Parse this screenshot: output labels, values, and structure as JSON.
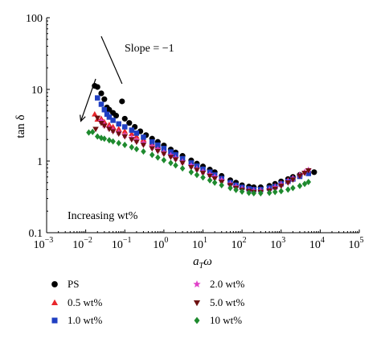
{
  "chart_data": {
    "type": "scatter",
    "title": "",
    "xlabel": "a_T ω",
    "xlabel_main": "a",
    "xlabel_sub": "T",
    "xlabel_tail": "ω",
    "ylabel": "tan δ",
    "x_scale": "log",
    "y_scale": "log",
    "xlim": [
      0.001,
      100000
    ],
    "ylim": [
      0.1,
      100
    ],
    "x_ticks": [
      {
        "value": 0.001,
        "base": "10",
        "exp": "−3"
      },
      {
        "value": 0.01,
        "base": "10",
        "exp": "−2"
      },
      {
        "value": 0.1,
        "base": "10",
        "exp": "−1"
      },
      {
        "value": 1,
        "base": "10",
        "exp": "0"
      },
      {
        "value": 10,
        "base": "10",
        "exp": "1"
      },
      {
        "value": 100,
        "base": "10",
        "exp": "2"
      },
      {
        "value": 1000,
        "base": "10",
        "exp": "3"
      },
      {
        "value": 10000,
        "base": "10",
        "exp": "4"
      },
      {
        "value": 100000,
        "base": "10",
        "exp": "5"
      }
    ],
    "y_ticks": [
      {
        "value": 0.1,
        "label": "0.1"
      },
      {
        "value": 1,
        "label": "1"
      },
      {
        "value": 10,
        "label": "10"
      },
      {
        "value": 100,
        "label": "100"
      }
    ],
    "grid": false,
    "legend_position": "bottom",
    "annotations": {
      "slope_text": "Slope = −1",
      "slope_line": {
        "x1": 0.025,
        "y1": 55,
        "x2": 0.085,
        "y2": 12
      },
      "arrow": {
        "x1": 0.018,
        "y1": 14,
        "x2": 0.0075,
        "y2": 3.6
      },
      "increasing_text": "Increasing wt%"
    },
    "series": [
      {
        "name": "PS",
        "color": "#000000",
        "marker": "circle",
        "points": [
          [
            0.017,
            11.2
          ],
          [
            0.02,
            10.8
          ],
          [
            0.025,
            8.8
          ],
          [
            0.03,
            7.3
          ],
          [
            0.035,
            5.6
          ],
          [
            0.04,
            5.2
          ],
          [
            0.05,
            4.7
          ],
          [
            0.06,
            4.3
          ],
          [
            0.085,
            6.8
          ],
          [
            0.1,
            3.9
          ],
          [
            0.13,
            3.4
          ],
          [
            0.18,
            3.0
          ],
          [
            0.25,
            2.6
          ],
          [
            0.35,
            2.3
          ],
          [
            0.5,
            2.05
          ],
          [
            0.7,
            1.85
          ],
          [
            1,
            1.65
          ],
          [
            1.5,
            1.45
          ],
          [
            2,
            1.32
          ],
          [
            3,
            1.18
          ],
          [
            5,
            1.02
          ],
          [
            7,
            0.92
          ],
          [
            10,
            0.84
          ],
          [
            15,
            0.76
          ],
          [
            20,
            0.7
          ],
          [
            30,
            0.62
          ],
          [
            50,
            0.54
          ],
          [
            70,
            0.5
          ],
          [
            100,
            0.46
          ],
          [
            150,
            0.44
          ],
          [
            200,
            0.43
          ],
          [
            300,
            0.43
          ],
          [
            500,
            0.45
          ],
          [
            700,
            0.48
          ],
          [
            1000,
            0.52
          ],
          [
            1500,
            0.56
          ],
          [
            2000,
            0.6
          ],
          [
            3000,
            0.64
          ],
          [
            5000,
            0.68
          ],
          [
            7000,
            0.7
          ]
        ]
      },
      {
        "name": "0.5 wt%",
        "color": "#e8262b",
        "marker": "triangle",
        "points": [
          [
            0.017,
            4.5
          ],
          [
            0.02,
            3.8
          ],
          [
            0.025,
            3.9
          ],
          [
            0.03,
            3.5
          ],
          [
            0.04,
            3.2
          ],
          [
            0.05,
            3.0
          ],
          [
            0.07,
            2.8
          ],
          [
            0.1,
            2.6
          ],
          [
            0.15,
            2.4
          ],
          [
            0.2,
            2.2
          ],
          [
            0.3,
            2.0
          ],
          [
            0.5,
            1.78
          ],
          [
            0.7,
            1.62
          ],
          [
            1,
            1.48
          ],
          [
            1.5,
            1.32
          ],
          [
            2,
            1.2
          ],
          [
            3,
            1.08
          ],
          [
            5,
            0.94
          ],
          [
            7,
            0.85
          ],
          [
            10,
            0.77
          ],
          [
            15,
            0.7
          ],
          [
            20,
            0.64
          ],
          [
            30,
            0.57
          ],
          [
            50,
            0.5
          ],
          [
            70,
            0.46
          ],
          [
            100,
            0.43
          ],
          [
            150,
            0.41
          ],
          [
            200,
            0.4
          ],
          [
            300,
            0.4
          ],
          [
            500,
            0.42
          ],
          [
            700,
            0.45
          ],
          [
            1000,
            0.49
          ],
          [
            1500,
            0.54
          ],
          [
            2000,
            0.58
          ],
          [
            3000,
            0.64
          ],
          [
            4000,
            0.7
          ],
          [
            5000,
            0.74
          ]
        ]
      },
      {
        "name": "1.0 wt%",
        "color": "#1f3fc2",
        "marker": "square",
        "points": [
          [
            0.02,
            7.6
          ],
          [
            0.025,
            6.2
          ],
          [
            0.03,
            5.2
          ],
          [
            0.035,
            4.5
          ],
          [
            0.04,
            4.1
          ],
          [
            0.05,
            3.7
          ],
          [
            0.07,
            3.3
          ],
          [
            0.1,
            3.0
          ],
          [
            0.15,
            2.7
          ],
          [
            0.2,
            2.45
          ],
          [
            0.3,
            2.15
          ],
          [
            0.5,
            1.85
          ],
          [
            0.7,
            1.67
          ],
          [
            1,
            1.5
          ],
          [
            1.5,
            1.34
          ],
          [
            2,
            1.22
          ],
          [
            3,
            1.08
          ],
          [
            5,
            0.94
          ],
          [
            7,
            0.85
          ],
          [
            10,
            0.77
          ],
          [
            15,
            0.7
          ],
          [
            20,
            0.64
          ],
          [
            30,
            0.57
          ],
          [
            50,
            0.5
          ],
          [
            70,
            0.46
          ],
          [
            100,
            0.43
          ],
          [
            150,
            0.41
          ],
          [
            200,
            0.4
          ],
          [
            300,
            0.4
          ],
          [
            500,
            0.42
          ],
          [
            700,
            0.44
          ],
          [
            1000,
            0.48
          ],
          [
            1500,
            0.52
          ],
          [
            2000,
            0.56
          ],
          [
            3000,
            0.61
          ],
          [
            5000,
            0.67
          ]
        ]
      },
      {
        "name": "2.0 wt%",
        "color": "#e040c8",
        "marker": "star",
        "points": [
          [
            0.025,
            3.6
          ],
          [
            0.03,
            3.2
          ],
          [
            0.04,
            2.9
          ],
          [
            0.05,
            2.7
          ],
          [
            0.07,
            2.5
          ],
          [
            0.1,
            2.3
          ],
          [
            0.15,
            2.1
          ],
          [
            0.2,
            1.95
          ],
          [
            0.3,
            1.78
          ],
          [
            0.5,
            1.58
          ],
          [
            0.7,
            1.45
          ],
          [
            1,
            1.32
          ],
          [
            1.5,
            1.2
          ],
          [
            2,
            1.1
          ],
          [
            3,
            0.98
          ],
          [
            5,
            0.86
          ],
          [
            7,
            0.78
          ],
          [
            10,
            0.71
          ],
          [
            15,
            0.65
          ],
          [
            20,
            0.6
          ],
          [
            30,
            0.54
          ],
          [
            50,
            0.48
          ],
          [
            70,
            0.44
          ],
          [
            100,
            0.41
          ],
          [
            150,
            0.39
          ],
          [
            200,
            0.385
          ],
          [
            300,
            0.385
          ],
          [
            500,
            0.4
          ],
          [
            700,
            0.43
          ],
          [
            1000,
            0.47
          ],
          [
            1500,
            0.52
          ],
          [
            2000,
            0.57
          ],
          [
            3000,
            0.64
          ],
          [
            4000,
            0.7
          ],
          [
            5000,
            0.75
          ]
        ]
      },
      {
        "name": "5.0 wt%",
        "color": "#6e1010",
        "marker": "triangle-down",
        "points": [
          [
            0.018,
            2.8
          ],
          [
            0.02,
            4.0
          ],
          [
            0.025,
            3.4
          ],
          [
            0.03,
            3.1
          ],
          [
            0.04,
            2.8
          ],
          [
            0.05,
            2.6
          ],
          [
            0.07,
            2.4
          ],
          [
            0.1,
            2.2
          ],
          [
            0.15,
            2.0
          ],
          [
            0.2,
            1.85
          ],
          [
            0.3,
            1.68
          ],
          [
            0.5,
            1.5
          ],
          [
            0.7,
            1.38
          ],
          [
            1,
            1.26
          ],
          [
            1.5,
            1.14
          ],
          [
            2,
            1.05
          ],
          [
            3,
            0.94
          ],
          [
            5,
            0.82
          ],
          [
            7,
            0.75
          ],
          [
            10,
            0.68
          ],
          [
            15,
            0.62
          ],
          [
            20,
            0.57
          ],
          [
            30,
            0.51
          ],
          [
            50,
            0.46
          ],
          [
            70,
            0.42
          ],
          [
            100,
            0.395
          ],
          [
            150,
            0.38
          ],
          [
            200,
            0.37
          ],
          [
            300,
            0.37
          ],
          [
            500,
            0.385
          ],
          [
            700,
            0.41
          ],
          [
            1000,
            0.45
          ],
          [
            1500,
            0.5
          ],
          [
            2000,
            0.55
          ],
          [
            3000,
            0.62
          ],
          [
            4000,
            0.68
          ],
          [
            5000,
            0.74
          ]
        ]
      },
      {
        "name": "10 wt%",
        "color": "#1e8a2e",
        "marker": "diamond",
        "points": [
          [
            0.012,
            2.5
          ],
          [
            0.015,
            2.55
          ],
          [
            0.02,
            2.2
          ],
          [
            0.025,
            2.1
          ],
          [
            0.03,
            2.05
          ],
          [
            0.04,
            1.95
          ],
          [
            0.05,
            1.88
          ],
          [
            0.07,
            1.78
          ],
          [
            0.1,
            1.68
          ],
          [
            0.15,
            1.56
          ],
          [
            0.2,
            1.47
          ],
          [
            0.3,
            1.36
          ],
          [
            0.5,
            1.22
          ],
          [
            0.7,
            1.12
          ],
          [
            1,
            1.03
          ],
          [
            1.5,
            0.94
          ],
          [
            2,
            0.87
          ],
          [
            3,
            0.79
          ],
          [
            5,
            0.7
          ],
          [
            7,
            0.64
          ],
          [
            10,
            0.59
          ],
          [
            15,
            0.54
          ],
          [
            20,
            0.5
          ],
          [
            30,
            0.46
          ],
          [
            50,
            0.42
          ],
          [
            70,
            0.395
          ],
          [
            100,
            0.375
          ],
          [
            150,
            0.36
          ],
          [
            200,
            0.355
          ],
          [
            300,
            0.355
          ],
          [
            500,
            0.36
          ],
          [
            700,
            0.37
          ],
          [
            1000,
            0.38
          ],
          [
            1500,
            0.4
          ],
          [
            2000,
            0.42
          ],
          [
            3000,
            0.45
          ],
          [
            4000,
            0.48
          ],
          [
            5000,
            0.51
          ]
        ]
      }
    ]
  }
}
